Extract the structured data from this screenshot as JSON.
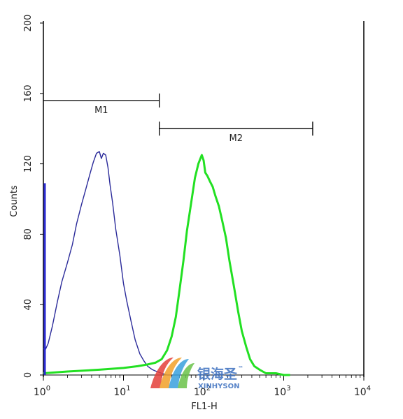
{
  "chart_data": {
    "type": "line",
    "xlabel": "FL1-H",
    "ylabel": "Counts",
    "xscale": "log",
    "xlim": [
      1,
      10000
    ],
    "ylim": [
      0,
      200
    ],
    "x_ticks": [
      {
        "base": "10",
        "exp": "0"
      },
      {
        "base": "10",
        "exp": "1"
      },
      {
        "base": "10",
        "exp": "2"
      },
      {
        "base": "10",
        "exp": "3"
      },
      {
        "base": "10",
        "exp": "4"
      }
    ],
    "y_ticks": [
      "0",
      "40",
      "80",
      "120",
      "160",
      "200"
    ],
    "grid": false,
    "markers": [
      {
        "label": "M1",
        "x_start": 1,
        "x_end": 28,
        "y": 156
      },
      {
        "label": "M2",
        "x_start": 28,
        "x_end": 2300,
        "y": 140
      }
    ],
    "series": [
      {
        "color": "#2b2b9a",
        "x": [
          1,
          1.05,
          1.15,
          1.3,
          1.5,
          1.7,
          2.0,
          2.3,
          2.6,
          3.0,
          3.4,
          3.8,
          4.2,
          4.6,
          5.0,
          5.3,
          5.6,
          6.0,
          6.4,
          6.8,
          7.3,
          8.0,
          9.0,
          10,
          11,
          12.5,
          14,
          16,
          18,
          20,
          23,
          26,
          30,
          35,
          40
        ],
        "y": [
          15,
          14,
          18,
          28,
          42,
          53,
          64,
          74,
          86,
          97,
          106,
          114,
          121,
          126,
          127,
          123,
          126,
          125,
          118,
          108,
          98,
          83,
          68,
          52,
          42,
          30,
          20,
          12,
          8,
          5,
          3,
          2,
          1,
          0,
          0
        ]
      },
      {
        "color": "#22e022",
        "x": [
          1,
          2,
          5,
          10,
          15,
          20,
          25,
          30,
          35,
          40,
          45,
          50,
          56,
          62,
          70,
          78,
          86,
          95,
          100,
          105,
          112,
          120,
          130,
          140,
          155,
          170,
          190,
          210,
          240,
          270,
          300,
          340,
          380,
          430,
          500,
          600,
          800,
          1000,
          1200
        ],
        "y": [
          1,
          2,
          3,
          4,
          5,
          6,
          7,
          9,
          14,
          22,
          33,
          48,
          65,
          82,
          98,
          112,
          120,
          125,
          122,
          115,
          113,
          110,
          107,
          102,
          96,
          88,
          78,
          65,
          50,
          36,
          25,
          16,
          9,
          5,
          3,
          1,
          1,
          0,
          0
        ]
      }
    ]
  },
  "watermark": {
    "cn_text": "银海圣",
    "tm": "™",
    "en_text": "XINHYSON"
  }
}
